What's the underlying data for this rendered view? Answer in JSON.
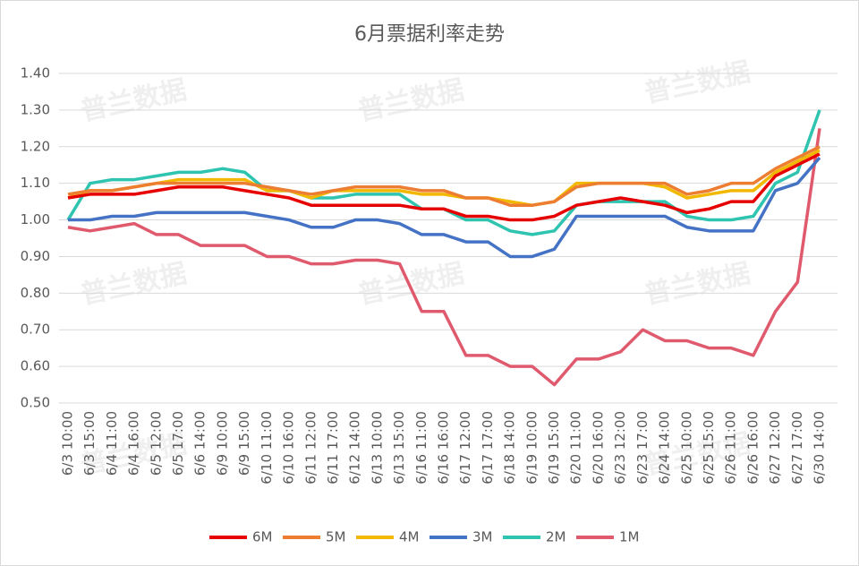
{
  "chart_data": {
    "type": "line",
    "title": "6月票据利率走势",
    "watermark": "普兰数据",
    "categories": [
      "6/3 10:00",
      "6/3 15:00",
      "6/4 11:00",
      "6/4 16:00",
      "6/5 12:00",
      "6/5 17:00",
      "6/6 14:00",
      "6/9 10:00",
      "6/9 15:00",
      "6/10 11:00",
      "6/10 16:00",
      "6/11 12:00",
      "6/11 17:00",
      "6/12 14:00",
      "6/13 10:00",
      "6/13 15:00",
      "6/16 11:00",
      "6/16 16:00",
      "6/17 12:00",
      "6/17 17:00",
      "6/18 14:00",
      "6/19 10:00",
      "6/19 15:00",
      "6/20 11:00",
      "6/20 16:00",
      "6/23 12:00",
      "6/23 17:00",
      "6/24 14:00",
      "6/25 10:00",
      "6/25 15:00",
      "6/26 11:00",
      "6/26 16:00",
      "6/27 12:00",
      "6/27 17:00",
      "6/30 14:00"
    ],
    "series": [
      {
        "name": "6M",
        "color": "#e60000",
        "values": [
          1.06,
          1.07,
          1.07,
          1.07,
          1.08,
          1.09,
          1.09,
          1.09,
          1.08,
          1.07,
          1.06,
          1.04,
          1.04,
          1.04,
          1.04,
          1.04,
          1.03,
          1.03,
          1.01,
          1.01,
          1.0,
          1.0,
          1.01,
          1.04,
          1.05,
          1.06,
          1.05,
          1.04,
          1.02,
          1.03,
          1.05,
          1.05,
          1.12,
          1.15,
          1.18
        ]
      },
      {
        "name": "5M",
        "color": "#ed7d31",
        "values": [
          1.07,
          1.08,
          1.08,
          1.09,
          1.1,
          1.1,
          1.1,
          1.1,
          1.1,
          1.09,
          1.08,
          1.07,
          1.08,
          1.09,
          1.09,
          1.09,
          1.08,
          1.08,
          1.06,
          1.06,
          1.04,
          1.04,
          1.05,
          1.09,
          1.1,
          1.1,
          1.1,
          1.1,
          1.07,
          1.08,
          1.1,
          1.1,
          1.14,
          1.17,
          1.2
        ]
      },
      {
        "name": "4M",
        "color": "#f2b800",
        "values": [
          1.06,
          1.08,
          1.08,
          1.09,
          1.1,
          1.11,
          1.11,
          1.11,
          1.11,
          1.08,
          1.08,
          1.06,
          1.08,
          1.08,
          1.08,
          1.08,
          1.07,
          1.07,
          1.06,
          1.06,
          1.05,
          1.04,
          1.05,
          1.1,
          1.1,
          1.1,
          1.1,
          1.09,
          1.06,
          1.07,
          1.08,
          1.08,
          1.13,
          1.16,
          1.19
        ]
      },
      {
        "name": "3M",
        "color": "#4472c4",
        "values": [
          1.0,
          1.0,
          1.01,
          1.01,
          1.02,
          1.02,
          1.02,
          1.02,
          1.02,
          1.01,
          1.0,
          0.98,
          0.98,
          1.0,
          1.0,
          0.99,
          0.96,
          0.96,
          0.94,
          0.94,
          0.9,
          0.9,
          0.92,
          1.01,
          1.01,
          1.01,
          1.01,
          1.01,
          0.98,
          0.97,
          0.97,
          0.97,
          1.08,
          1.1,
          1.17
        ]
      },
      {
        "name": "2M",
        "color": "#2ec4b0",
        "values": [
          1.0,
          1.1,
          1.11,
          1.11,
          1.12,
          1.13,
          1.13,
          1.14,
          1.13,
          1.08,
          1.08,
          1.06,
          1.06,
          1.07,
          1.07,
          1.07,
          1.03,
          1.03,
          1.0,
          1.0,
          0.97,
          0.96,
          0.97,
          1.04,
          1.05,
          1.05,
          1.05,
          1.05,
          1.01,
          1.0,
          1.0,
          1.01,
          1.1,
          1.13,
          1.3
        ]
      },
      {
        "name": "1M",
        "color": "#e05a6e",
        "values": [
          0.98,
          0.97,
          0.98,
          0.99,
          0.96,
          0.96,
          0.93,
          0.93,
          0.93,
          0.9,
          0.9,
          0.88,
          0.88,
          0.89,
          0.89,
          0.88,
          0.75,
          0.75,
          0.63,
          0.63,
          0.6,
          0.6,
          0.55,
          0.62,
          0.62,
          0.64,
          0.7,
          0.67,
          0.67,
          0.65,
          0.65,
          0.63,
          0.75,
          0.83,
          1.25
        ]
      }
    ],
    "ylim": [
      0.5,
      1.4
    ],
    "yticks": [
      {
        "value": 0.5,
        "label": "0.50"
      },
      {
        "value": 0.6,
        "label": "0.60"
      },
      {
        "value": 0.7,
        "label": "0.70"
      },
      {
        "value": 0.8,
        "label": "0.80"
      },
      {
        "value": 0.9,
        "label": "0.90"
      },
      {
        "value": 1.0,
        "label": "1.00"
      },
      {
        "value": 1.1,
        "label": "1.10"
      },
      {
        "value": 1.2,
        "label": "1.20"
      },
      {
        "value": 1.3,
        "label": "1.30"
      },
      {
        "value": 1.4,
        "label": "1.40"
      }
    ],
    "grid": true,
    "legend": "bottom"
  }
}
